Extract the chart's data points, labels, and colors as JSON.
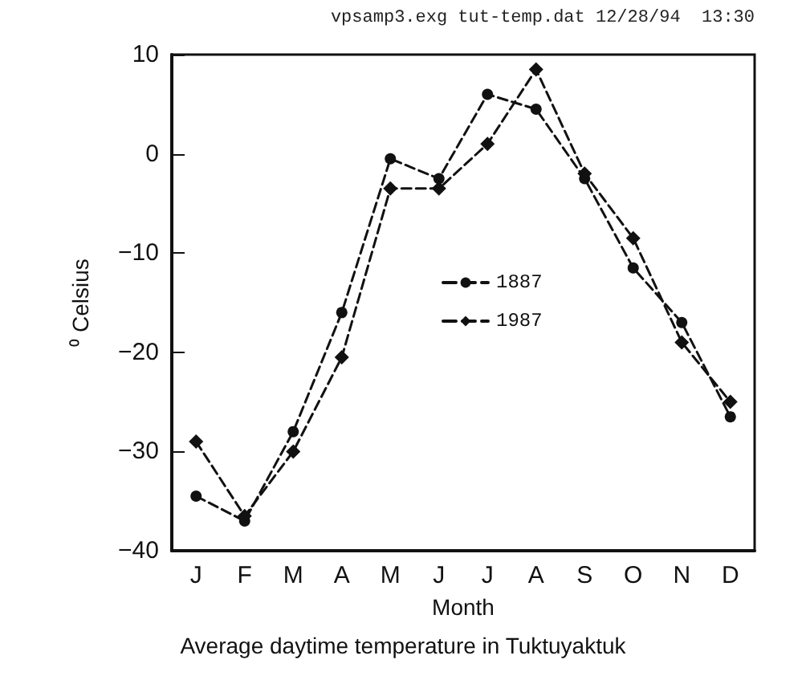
{
  "chart_data": {
    "type": "line",
    "title": "Average daytime temperature in Tuktuyaktuk",
    "xlabel": "Month",
    "ylabel": "⁰ Celsius",
    "annotations": [
      "vpsamp3.exg tut-temp.dat 12/28/94  13:30"
    ],
    "categories": [
      "J",
      "F",
      "M",
      "A",
      "M",
      "J",
      "J",
      "A",
      "S",
      "O",
      "N",
      "D"
    ],
    "series": [
      {
        "name": "1887",
        "color": "#111111",
        "marker": "circle",
        "values": [
          -34.5,
          -37,
          -28,
          -16,
          -0.5,
          -2.5,
          6,
          4.5,
          -2.5,
          -11.5,
          -17,
          -26.5
        ]
      },
      {
        "name": "1987",
        "color": "#111111",
        "marker": "diamond",
        "values": [
          -29,
          -36.5,
          -30,
          -20.5,
          -3.5,
          -3.5,
          1,
          8.5,
          -2,
          -8.5,
          -19,
          -25
        ]
      }
    ],
    "ylim": [
      -40,
      10
    ],
    "yticks": [
      -40,
      -30,
      -20,
      -10,
      0,
      10
    ],
    "grid": false,
    "legend": "center",
    "line_style": "dashed"
  }
}
